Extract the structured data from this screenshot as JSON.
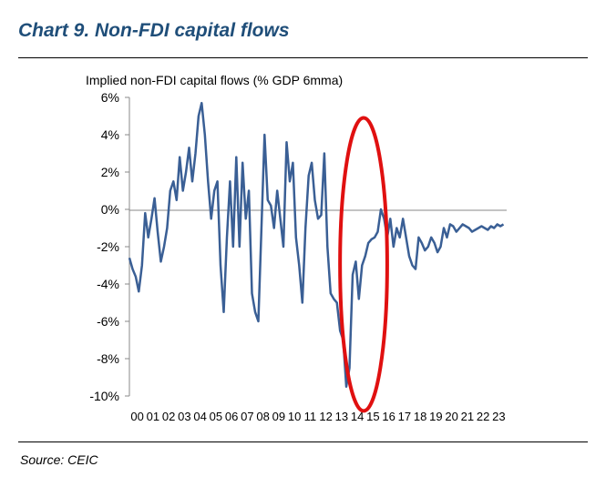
{
  "header": {
    "title": "Chart 9. Non-FDI capital flows"
  },
  "footer": {
    "source": "Source: CEIC"
  },
  "chart_data": {
    "type": "line",
    "title": "Chart 9. Non-FDI capital flows",
    "ylabel": "Implied non-FDI capital flows (% GDP 6mma)",
    "xlabel": "",
    "ylim": [
      -10,
      6
    ],
    "yticks": [
      -10,
      -8,
      -6,
      -4,
      -2,
      0,
      2,
      4,
      6
    ],
    "ytick_labels": [
      "-10%",
      "-8%",
      "-6%",
      "-4%",
      "-2%",
      "0%",
      "2%",
      "4%",
      "6%"
    ],
    "xlim": [
      2000,
      2024
    ],
    "xtick_labels": [
      "00",
      "01",
      "02",
      "03",
      "04",
      "05",
      "06",
      "07",
      "08",
      "09",
      "10",
      "11",
      "12",
      "13",
      "14",
      "15",
      "16",
      "17",
      "18",
      "19",
      "20",
      "21",
      "22",
      "23"
    ],
    "grid": false,
    "line_color": "#3a5f95",
    "annotation": {
      "shape": "ellipse",
      "color": "#e01010",
      "x_range": [
        2013.4,
        2016.4
      ],
      "y_range": [
        -10.8,
        4.9
      ]
    },
    "series": [
      {
        "x": [
          2000.0,
          2000.2,
          2000.4,
          2000.6,
          2000.8,
          2001.0,
          2001.2,
          2001.4,
          2001.6,
          2001.8,
          2002.0,
          2002.2,
          2002.4,
          2002.6,
          2002.8,
          2003.0,
          2003.2,
          2003.4,
          2003.6,
          2003.8,
          2004.0,
          2004.2,
          2004.4,
          2004.6,
          2004.8,
          2005.0,
          2005.2,
          2005.4,
          2005.6,
          2005.8,
          2006.0,
          2006.2,
          2006.4,
          2006.6,
          2006.8,
          2007.0,
          2007.2,
          2007.4,
          2007.6,
          2007.8,
          2008.0,
          2008.2,
          2008.4,
          2008.6,
          2008.8,
          2009.0,
          2009.2,
          2009.4,
          2009.6,
          2009.8,
          2010.0,
          2010.2,
          2010.4,
          2010.6,
          2010.8,
          2011.0,
          2011.2,
          2011.4,
          2011.6,
          2011.8,
          2012.0,
          2012.2,
          2012.4,
          2012.6,
          2012.8,
          2013.0,
          2013.2,
          2013.4,
          2013.6,
          2013.8,
          2014.0,
          2014.2,
          2014.4,
          2014.6,
          2014.8,
          2015.0,
          2015.2,
          2015.4,
          2015.6,
          2015.8,
          2016.0,
          2016.2,
          2016.4,
          2016.6,
          2016.8,
          2017.0,
          2017.2,
          2017.4,
          2017.6,
          2017.8,
          2018.0,
          2018.2,
          2018.4,
          2018.6,
          2018.8,
          2019.0,
          2019.2,
          2019.4,
          2019.6,
          2019.8,
          2020.0,
          2020.2,
          2020.4,
          2020.6,
          2020.8,
          2021.0,
          2021.2,
          2021.4,
          2021.6,
          2021.8,
          2022.0,
          2022.2,
          2022.4,
          2022.6,
          2022.8,
          2023.0,
          2023.2,
          2023.4,
          2023.6,
          2023.8
        ],
        "values": [
          -2.6,
          -3.2,
          -3.6,
          -4.4,
          -3.0,
          -0.2,
          -1.5,
          -0.5,
          0.6,
          -1.2,
          -2.8,
          -2.0,
          -1.0,
          1.0,
          1.5,
          0.5,
          2.8,
          1.0,
          2.0,
          3.3,
          1.5,
          3.0,
          5.0,
          5.7,
          4.0,
          1.5,
          -0.5,
          1.0,
          1.5,
          -3.0,
          -5.5,
          -1.5,
          1.5,
          -2.0,
          2.8,
          -2.0,
          2.5,
          -0.5,
          1.0,
          -4.5,
          -5.5,
          -6.0,
          -1.0,
          4.0,
          0.5,
          0.2,
          -1.0,
          1.0,
          -0.5,
          -2.0,
          3.6,
          1.5,
          2.5,
          -1.5,
          -3.0,
          -5.0,
          -1.0,
          1.8,
          2.5,
          0.5,
          -0.5,
          -0.3,
          3.0,
          -2.0,
          -4.5,
          -4.8,
          -5.0,
          -6.5,
          -7.0,
          -9.5,
          -8.5,
          -3.5,
          -2.8,
          -4.8,
          -3.0,
          -2.5,
          -1.8,
          -1.6,
          -1.5,
          -1.2,
          0.0,
          -0.5,
          -1.5,
          -0.5,
          -2.0,
          -1.0,
          -1.5,
          -0.5,
          -1.5,
          -2.5,
          -3.0,
          -3.2,
          -1.5,
          -1.8,
          -2.2,
          -2.0,
          -1.5,
          -1.8,
          -2.3,
          -2.0,
          -1.0,
          -1.5,
          -0.8,
          -0.9,
          -1.2,
          -1.0,
          -0.8,
          -0.9,
          -1.0,
          -1.2,
          -1.1,
          -1.0,
          -0.9,
          -1.0,
          -1.1,
          -0.9,
          -1.0,
          -0.8,
          -0.9,
          -0.8
        ]
      }
    ]
  }
}
